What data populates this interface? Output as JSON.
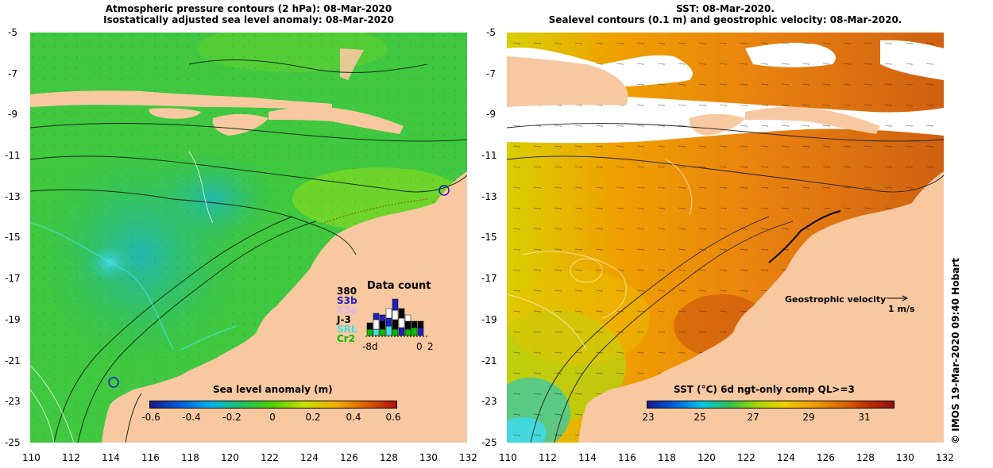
{
  "left_panel": {
    "title_line1": "Atmospheric pressure contours (2 hPa): 08-Mar-2020",
    "title_line2": "Isostatically adjusted sea level anomaly: 08-Mar-2020",
    "colorbar_title": "Sea level anomaly (m)",
    "colorbar_ticks": [
      "-0.6",
      "-0.4",
      "-0.2",
      "0",
      "0.2",
      "0.4",
      "0.6"
    ],
    "colorbar_colors": [
      "#1a1a8c",
      "#0060e0",
      "#00b4e8",
      "#20c060",
      "#50d000",
      "#c8e000",
      "#f0b000",
      "#e06000",
      "#b01010"
    ],
    "data_count": {
      "title": "Data count",
      "max_label": "380",
      "missions": [
        {
          "label": "S3b",
          "color": "#2020c0"
        },
        {
          "label": "S3a",
          "color": "#d8b8f0"
        },
        {
          "label": "J-3",
          "color": "#000000"
        },
        {
          "label": "SRL",
          "color": "#40e0e0"
        },
        {
          "label": "Cr2",
          "color": "#00c000"
        }
      ],
      "x_labels": [
        "-8d",
        "0",
        "2"
      ]
    }
  },
  "right_panel": {
    "title_line1": "SST: 08-Mar-2020.",
    "title_line2": "Sealevel contours (0.1 m) and geostrophic velocity: 08-Mar-2020.",
    "colorbar_title": "SST (°C) 6d ngt-only comp QL>=3",
    "colorbar_ticks": [
      "23",
      "25",
      "27",
      "29",
      "31"
    ],
    "colorbar_colors": [
      "#1a1a8c",
      "#0060e0",
      "#00c8e8",
      "#30c050",
      "#a0d800",
      "#f0d000",
      "#f0a000",
      "#e07000",
      "#c03000",
      "#901010"
    ],
    "velocity_label": "Geostrophic velocity",
    "velocity_scale": "1 m/s",
    "credit": "© IMOS 19-Mar-2020 09:40 Hobart"
  },
  "axes": {
    "lon_ticks": [
      "110",
      "112",
      "114",
      "116",
      "118",
      "120",
      "122",
      "124",
      "126",
      "128",
      "130",
      "132"
    ],
    "lat_ticks": [
      "-5",
      "-7",
      "-9",
      "-11",
      "-13",
      "-15",
      "-17",
      "-19",
      "-21",
      "-23",
      "-25"
    ]
  },
  "colors": {
    "land": "#f8c8a0",
    "cloud": "#ffffff",
    "ssh_base": "#38c838",
    "sst_base": "#e89020"
  }
}
